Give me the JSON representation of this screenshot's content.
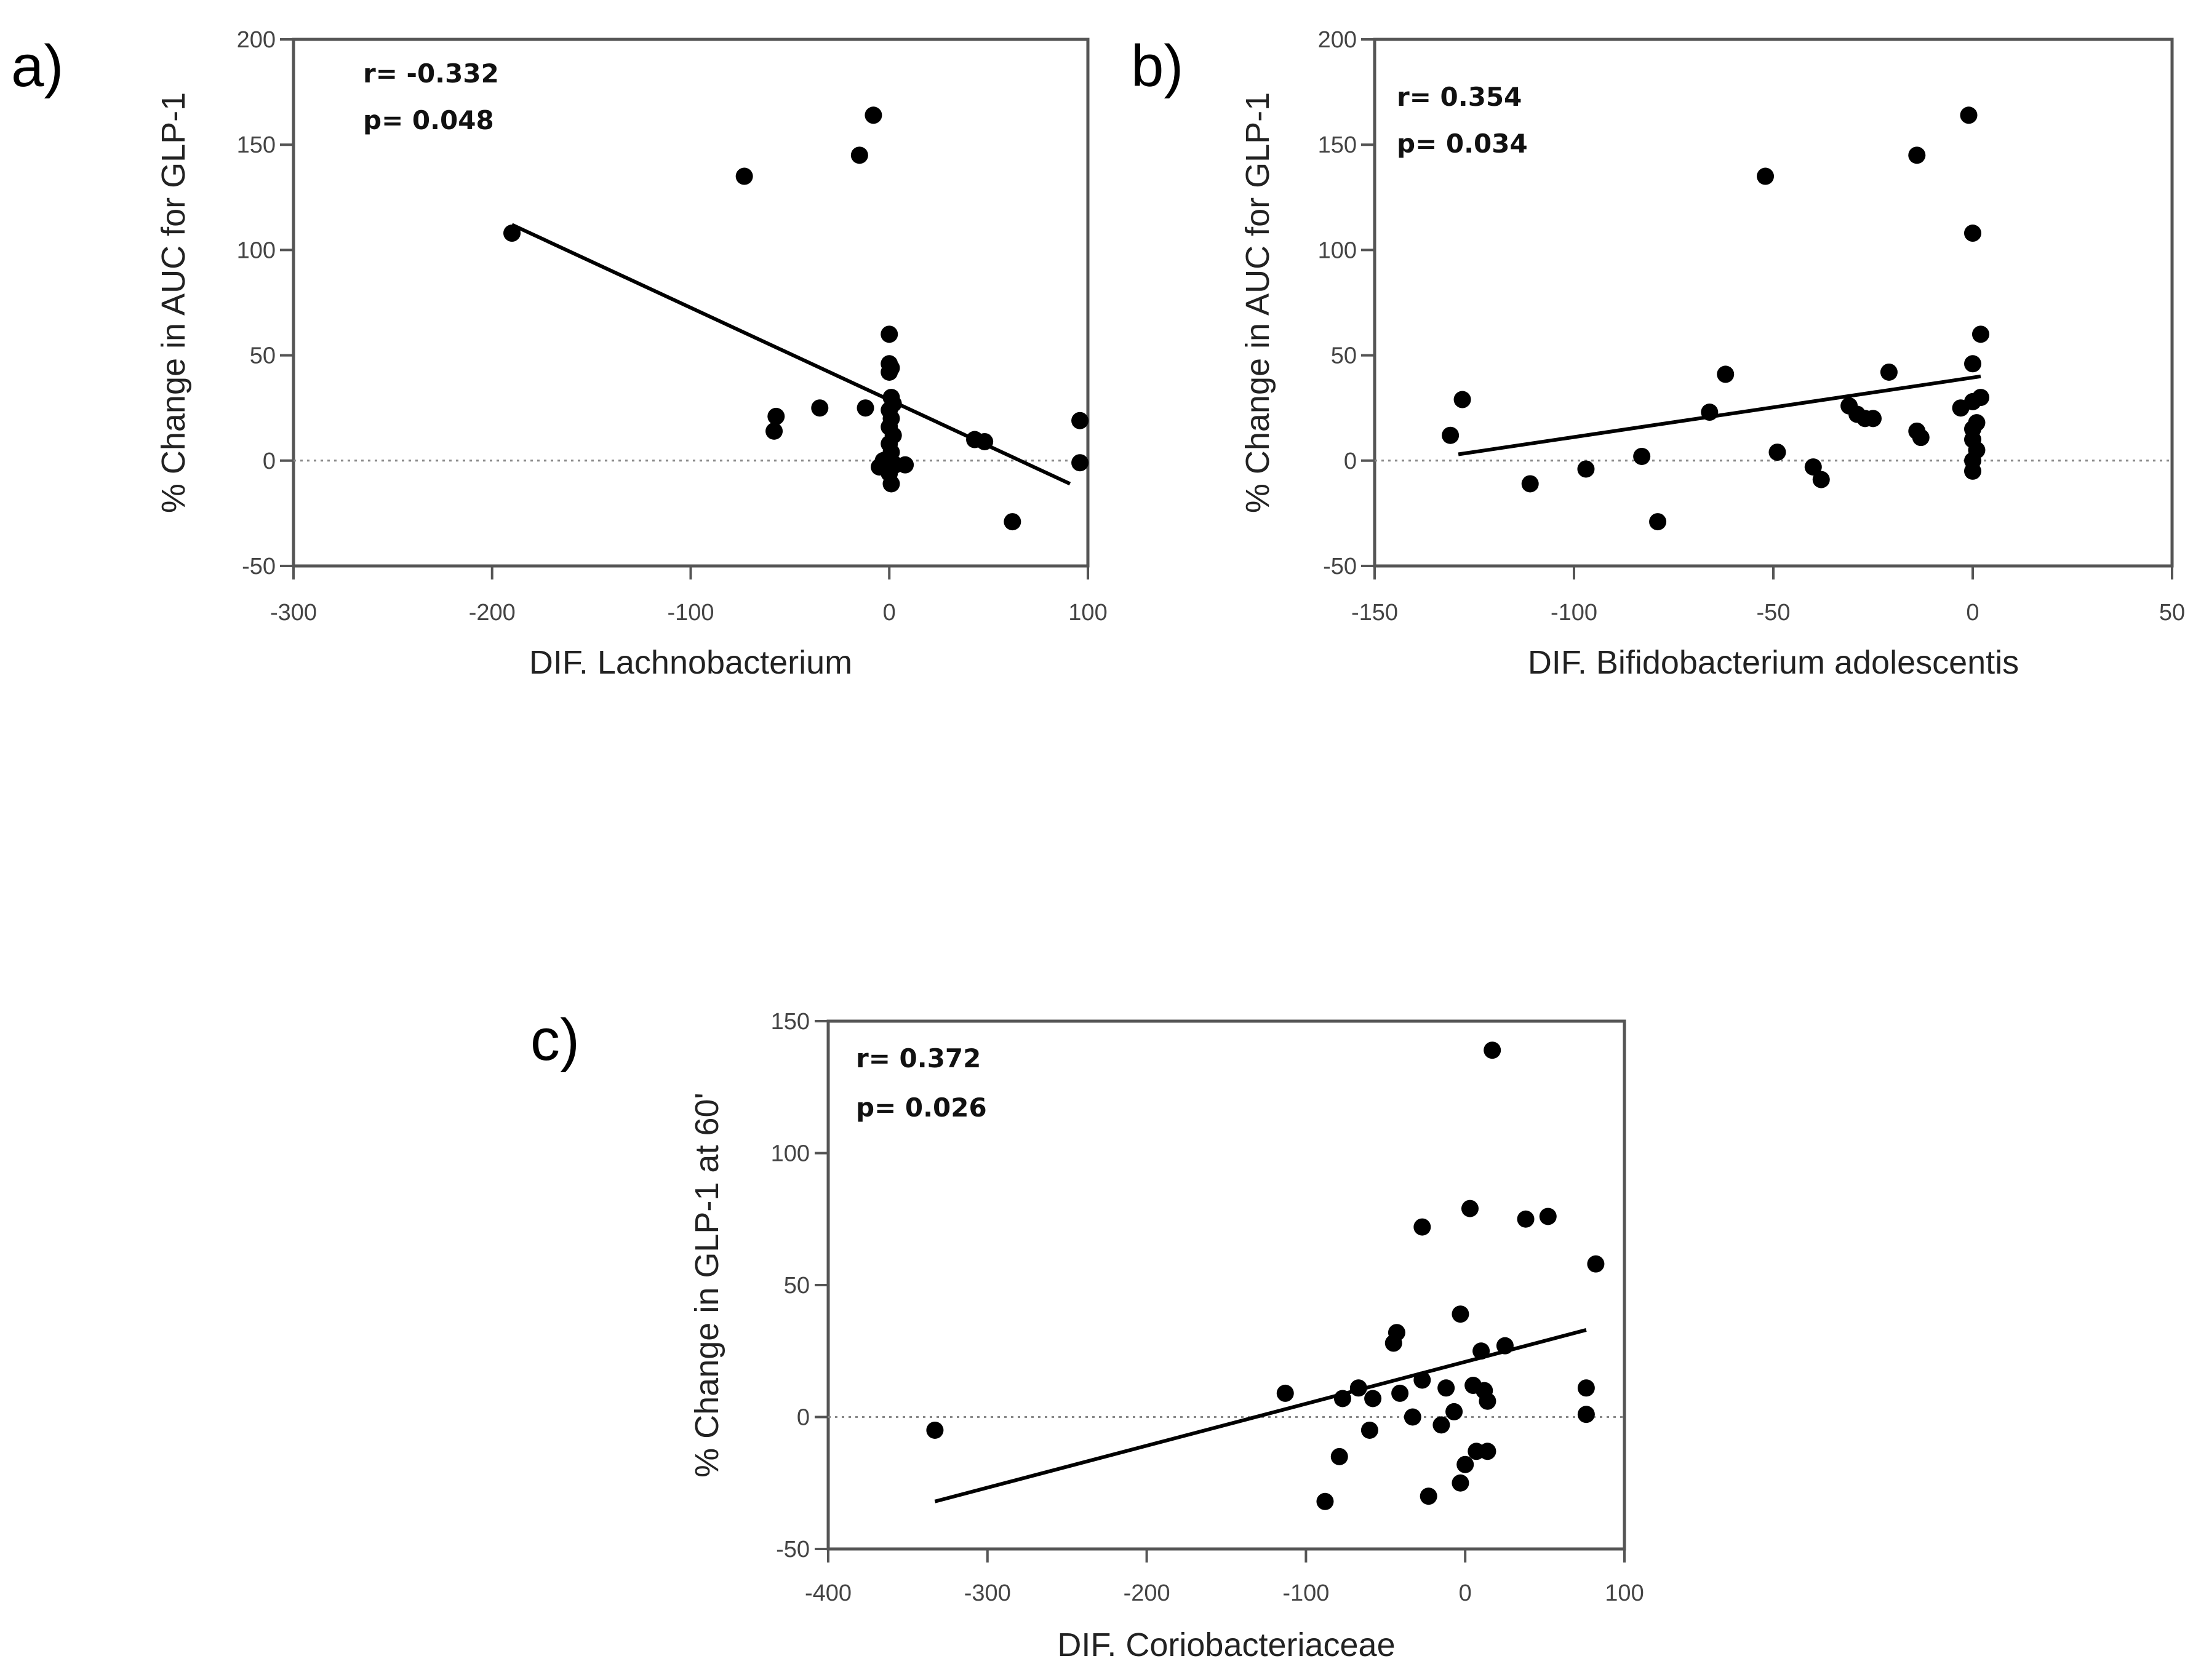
{
  "chart_data": [
    {
      "panel": "a)",
      "type": "scatter",
      "xlabel": "DIF. Lachnobacterium",
      "ylabel": "% Change in AUC for GLP-1",
      "xlim": [
        -300,
        100
      ],
      "ylim": [
        -50,
        200
      ],
      "xticks": [
        -300,
        -200,
        -100,
        0,
        100
      ],
      "yticks": [
        -50,
        0,
        50,
        100,
        150,
        200
      ],
      "annotation": [
        "r= -0.332",
        "p= 0.048"
      ],
      "reference_line_y": 0,
      "fit_line": {
        "x": [
          -190,
          91
        ],
        "y": [
          112,
          -11
        ]
      },
      "points": [
        {
          "x": -190,
          "y": 108
        },
        {
          "x": -73,
          "y": 135
        },
        {
          "x": -15,
          "y": 145
        },
        {
          "x": -8,
          "y": 164
        },
        {
          "x": -57,
          "y": 21
        },
        {
          "x": -58,
          "y": 14
        },
        {
          "x": -35,
          "y": 25
        },
        {
          "x": -12,
          "y": 25
        },
        {
          "x": 0,
          "y": 60
        },
        {
          "x": 0,
          "y": 46
        },
        {
          "x": 1,
          "y": 44
        },
        {
          "x": 0,
          "y": 42
        },
        {
          "x": 1,
          "y": 30
        },
        {
          "x": 2,
          "y": 27
        },
        {
          "x": 0,
          "y": 24
        },
        {
          "x": 1,
          "y": 20
        },
        {
          "x": 0,
          "y": 16
        },
        {
          "x": 2,
          "y": 12
        },
        {
          "x": 0,
          "y": 8
        },
        {
          "x": 1,
          "y": 4
        },
        {
          "x": -3,
          "y": 0
        },
        {
          "x": -5,
          "y": -3
        },
        {
          "x": 3,
          "y": -2
        },
        {
          "x": 8,
          "y": -2
        },
        {
          "x": 0,
          "y": -6
        },
        {
          "x": 1,
          "y": -11
        },
        {
          "x": 43,
          "y": 10
        },
        {
          "x": 48,
          "y": 9
        },
        {
          "x": 62,
          "y": -29
        },
        {
          "x": 96,
          "y": 19
        },
        {
          "x": 96,
          "y": -1
        }
      ]
    },
    {
      "panel": "b)",
      "type": "scatter",
      "xlabel": "DIF. Bifidobacterium adolescentis",
      "ylabel": "% Change in AUC for GLP-1",
      "xlim": [
        -150,
        50
      ],
      "ylim": [
        -50,
        200
      ],
      "xticks": [
        -150,
        -100,
        -50,
        0,
        50
      ],
      "yticks": [
        -50,
        0,
        50,
        100,
        150,
        200
      ],
      "annotation": [
        "r= 0.354",
        "p= 0.034"
      ],
      "reference_line_y": 0,
      "fit_line": {
        "x": [
          -129,
          2
        ],
        "y": [
          3,
          40
        ]
      },
      "points": [
        {
          "x": -128,
          "y": 29
        },
        {
          "x": -131,
          "y": 12
        },
        {
          "x": -111,
          "y": -11
        },
        {
          "x": -97,
          "y": -4
        },
        {
          "x": -83,
          "y": 2
        },
        {
          "x": -79,
          "y": -29
        },
        {
          "x": -66,
          "y": 23
        },
        {
          "x": -62,
          "y": 41
        },
        {
          "x": -52,
          "y": 135
        },
        {
          "x": -49,
          "y": 4
        },
        {
          "x": -40,
          "y": -3
        },
        {
          "x": -38,
          "y": -9
        },
        {
          "x": -31,
          "y": 26
        },
        {
          "x": -29,
          "y": 22
        },
        {
          "x": -27,
          "y": 20
        },
        {
          "x": -25,
          "y": 20
        },
        {
          "x": -21,
          "y": 42
        },
        {
          "x": -14,
          "y": 14
        },
        {
          "x": -13,
          "y": 11
        },
        {
          "x": -14,
          "y": 145
        },
        {
          "x": -1,
          "y": 164
        },
        {
          "x": 0,
          "y": 108
        },
        {
          "x": 2,
          "y": 60
        },
        {
          "x": 0,
          "y": 46
        },
        {
          "x": 2,
          "y": 30
        },
        {
          "x": 0,
          "y": 28
        },
        {
          "x": -3,
          "y": 25
        },
        {
          "x": 1,
          "y": 18
        },
        {
          "x": 0,
          "y": 15
        },
        {
          "x": 0,
          "y": 10
        },
        {
          "x": 1,
          "y": 5
        },
        {
          "x": 0,
          "y": 0
        },
        {
          "x": 0,
          "y": -5
        }
      ]
    },
    {
      "panel": "c)",
      "type": "scatter",
      "xlabel": "DIF. Coriobacteriaceae",
      "ylabel": "% Change in GLP-1 at 60'",
      "xlim": [
        -400,
        100
      ],
      "ylim": [
        -50,
        150
      ],
      "xticks": [
        -400,
        -300,
        -200,
        -100,
        0,
        100
      ],
      "yticks": [
        -50,
        0,
        50,
        100,
        150
      ],
      "annotation": [
        "r= 0.372",
        "p= 0.026"
      ],
      "reference_line_y": 0,
      "fit_line": {
        "x": [
          -333,
          76
        ],
        "y": [
          -32,
          33
        ]
      },
      "points": [
        {
          "x": -333,
          "y": -5
        },
        {
          "x": -113,
          "y": 9
        },
        {
          "x": -88,
          "y": -32
        },
        {
          "x": -79,
          "y": -15
        },
        {
          "x": -77,
          "y": 7
        },
        {
          "x": -67,
          "y": 11
        },
        {
          "x": -58,
          "y": 7
        },
        {
          "x": -60,
          "y": -5
        },
        {
          "x": -45,
          "y": 28
        },
        {
          "x": -43,
          "y": 32
        },
        {
          "x": -41,
          "y": 9
        },
        {
          "x": -33,
          "y": 0
        },
        {
          "x": -27,
          "y": 72
        },
        {
          "x": -27,
          "y": 14
        },
        {
          "x": -23,
          "y": -30
        },
        {
          "x": -15,
          "y": -3
        },
        {
          "x": -12,
          "y": 11
        },
        {
          "x": -7,
          "y": 2
        },
        {
          "x": -3,
          "y": 39
        },
        {
          "x": -3,
          "y": -25
        },
        {
          "x": 0,
          "y": -18
        },
        {
          "x": 3,
          "y": 79
        },
        {
          "x": 5,
          "y": 12
        },
        {
          "x": 7,
          "y": -13
        },
        {
          "x": 10,
          "y": 25
        },
        {
          "x": 12,
          "y": 10
        },
        {
          "x": 14,
          "y": 6
        },
        {
          "x": 14,
          "y": -13
        },
        {
          "x": 17,
          "y": 139
        },
        {
          "x": 25,
          "y": 27
        },
        {
          "x": 38,
          "y": 75
        },
        {
          "x": 52,
          "y": 76
        },
        {
          "x": 76,
          "y": 11
        },
        {
          "x": 76,
          "y": 1
        },
        {
          "x": 82,
          "y": 58
        }
      ]
    }
  ]
}
